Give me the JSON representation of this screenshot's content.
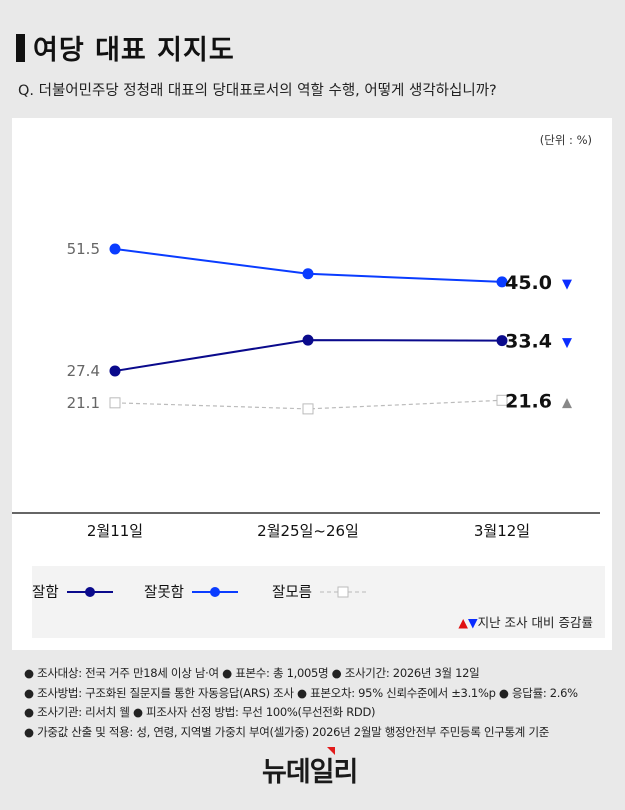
{
  "title": "여당 대표 지지도",
  "question": "Q. 더불어민주당 정청래 대표의 당대표로서의 역할 수행, 어떻게 생각하십니까?",
  "unit": "(단위 : %)",
  "chart_data": {
    "type": "line",
    "categories": [
      "2월11일",
      "2월25일~26일",
      "3월12일"
    ],
    "series": [
      {
        "name": "잘못함",
        "values": [
          51.5,
          46.6,
          45.0
        ],
        "color": "#0a3cff",
        "style": "solid",
        "labels": [
          "51.5",
          null,
          "45.0"
        ],
        "change": "down"
      },
      {
        "name": "잘함",
        "values": [
          27.4,
          33.5,
          33.4
        ],
        "color": "#0a0a8c",
        "style": "solid",
        "labels": [
          "27.4",
          null,
          "33.4"
        ],
        "change": "down"
      },
      {
        "name": "잘모름",
        "values": [
          21.1,
          19.9,
          21.6
        ],
        "color": "#bbbbbb",
        "style": "dashed",
        "labels": [
          "21.1",
          null,
          "21.6"
        ],
        "change": "up"
      }
    ],
    "legend_placement": "bottom",
    "change_colors": {
      "up": "#e01010",
      "down": "#0a2cff",
      "up_last": "#888888"
    }
  },
  "legend_note": "지난 조사 대비 증감률",
  "footnotes": [
    "● 조사대상: 전국 거주 만18세 이상 남·여 ● 표본수: 총 1,005명 ● 조사기간: 2026년 3월 12일",
    "● 조사방법: 구조화된 질문지를 통한 자동응답(ARS) 조사 ● 표본오차: 95% 신뢰수준에서 ±3.1%p ● 응답률: 2.6%",
    "● 조사기관: 리서치 웰 ● 피조사자 선정 방법: 무선 100%(무선전화 RDD)",
    "● 가중값 산출 및 적용: 성, 연령, 지역별 가중치 부여(셀가중) 2026년 2월말 행정안전부 주민등록 인구통계 기준"
  ],
  "logo": "뉴데일리"
}
